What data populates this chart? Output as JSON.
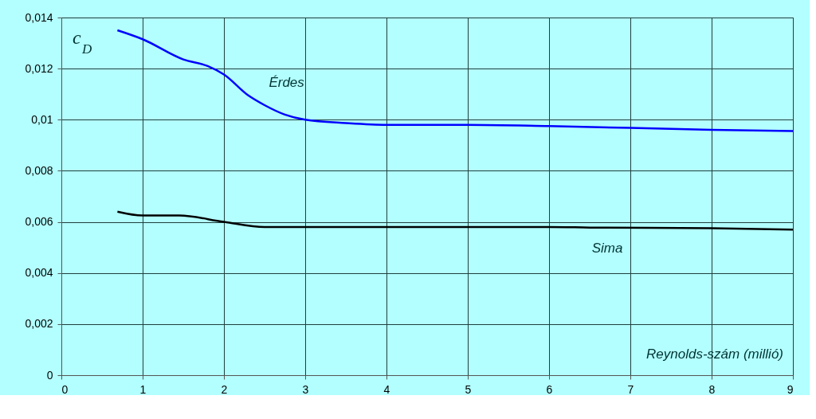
{
  "chart_data": {
    "type": "line",
    "xlabel": "Reynolds-szám (millió)",
    "ylabel": "c$_{D}$",
    "xlim": [
      0,
      9
    ],
    "xticks": [
      0,
      1,
      2,
      3,
      4,
      5,
      6,
      7,
      8,
      9
    ],
    "ylim": [
      0,
      0.014
    ],
    "yticks": [
      0,
      {
        "value": 0.002,
        "label": "0,002"
      },
      {
        "value": 0.004,
        "label": "0,004"
      },
      {
        "value": 0.006,
        "label": "0,006"
      },
      {
        "value": 0.008,
        "label": "0,008"
      },
      {
        "value": 0.01,
        "label": "0,01"
      },
      {
        "value": 0.012,
        "label": "0,012"
      },
      {
        "value": 0.014,
        "label": "0,014"
      }
    ],
    "grid": true,
    "line_style": "solid",
    "marker": "none",
    "series": [
      {
        "name": "Érdes",
        "color": "#0000ff",
        "x": [
          0.69,
          1,
          1.5,
          1.8,
          2,
          2.3,
          2.5,
          2.75,
          3,
          3.5,
          4,
          5,
          6,
          7,
          8,
          9
        ],
        "values": [
          0.0135,
          0.01315,
          0.01236,
          0.0121,
          0.01177,
          0.01095,
          0.01057,
          0.0102,
          0.01,
          0.00987,
          0.0098,
          0.0098,
          0.00975,
          0.00968,
          0.0096,
          0.00956
        ]
      },
      {
        "name": "Sima",
        "color": "#000000",
        "x": [
          0.69,
          1,
          1.45,
          2,
          2.5,
          3,
          4,
          5,
          6,
          6.5,
          8,
          9
        ],
        "values": [
          0.0064,
          0.00625,
          0.00625,
          0.006,
          0.0058,
          0.0058,
          0.0058,
          0.0058,
          0.0058,
          0.00578,
          0.00575,
          0.0057
        ]
      }
    ]
  }
}
